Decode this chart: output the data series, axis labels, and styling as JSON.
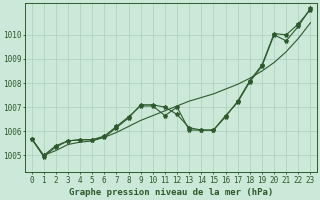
{
  "title": "Graphe pression niveau de la mer (hPa)",
  "bg_color": "#cce8d8",
  "line_color": "#2d5a2d",
  "grid_color": "#aacfba",
  "y_ticks": [
    1005,
    1006,
    1007,
    1008,
    1009,
    1010
  ],
  "ylim": [
    1004.3,
    1011.3
  ],
  "xlim": [
    -0.5,
    23.5
  ],
  "series_wavy1": [
    1005.7,
    1005.0,
    1005.4,
    1005.6,
    1005.65,
    1005.65,
    1005.75,
    1006.15,
    1006.55,
    1007.1,
    1007.1,
    1007.0,
    1006.7,
    1006.15,
    1006.05,
    1006.05,
    1006.6,
    1007.25,
    1008.1,
    1008.75,
    1010.05,
    1010.0,
    1010.45,
    1011.05
  ],
  "series_wavy2": [
    1005.7,
    1004.95,
    1005.35,
    1005.6,
    1005.65,
    1005.65,
    1005.8,
    1006.2,
    1006.6,
    1007.05,
    1007.05,
    1006.65,
    1007.0,
    1006.05,
    1006.05,
    1006.05,
    1006.65,
    1007.2,
    1008.05,
    1008.7,
    1010.0,
    1009.75,
    1010.35,
    1011.1
  ],
  "series_straight": [
    1005.7,
    1005.0,
    1005.2,
    1005.45,
    1005.55,
    1005.6,
    1005.75,
    1005.95,
    1006.2,
    1006.45,
    1006.65,
    1006.85,
    1007.05,
    1007.25,
    1007.4,
    1007.55,
    1007.75,
    1007.95,
    1008.2,
    1008.5,
    1008.85,
    1009.3,
    1009.85,
    1010.5
  ],
  "title_fontsize": 6.5,
  "tick_fontsize": 5.5,
  "xlabel_fontsize": 5.5
}
